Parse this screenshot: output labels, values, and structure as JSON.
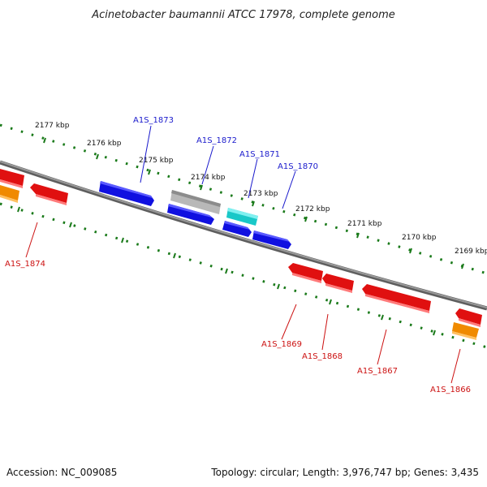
{
  "title": "Acinetobacter baumannii ATCC 17978, complete genome",
  "footer": {
    "accession": "Accession: NC_009085",
    "summary": "Topology: circular; Length: 3,976,747 bp; Genes: 3,435"
  },
  "colors": {
    "backbone": "#808080",
    "tick_dot": "#1a7a1a",
    "forward_label": "#1a1acc",
    "reverse_label": "#cc1111",
    "gene_blue": "#1010e0",
    "gene_gray": "#b8b8b8",
    "gene_cyan": "#19c8c8",
    "gene_red": "#e01010",
    "gene_orange": "#f08a00"
  },
  "ticks": [
    {
      "label": "2177 kbp"
    },
    {
      "label": "2176 kbp"
    },
    {
      "label": "2175 kbp"
    },
    {
      "label": "2174 kbp"
    },
    {
      "label": "2173 kbp"
    },
    {
      "label": "2172 kbp"
    },
    {
      "label": "2171 kbp"
    },
    {
      "label": "2170 kbp"
    },
    {
      "label": "2169 kbp"
    }
  ],
  "gene_labels": [
    {
      "text": "A1S_1873",
      "strand": "forward"
    },
    {
      "text": "A1S_1872",
      "strand": "forward"
    },
    {
      "text": "A1S_1871",
      "strand": "forward"
    },
    {
      "text": "A1S_1870",
      "strand": "forward"
    },
    {
      "text": "A1S_1874",
      "strand": "reverse"
    },
    {
      "text": "A1S_1869",
      "strand": "reverse"
    },
    {
      "text": "A1S_1868",
      "strand": "reverse"
    },
    {
      "text": "A1S_1867",
      "strand": "reverse"
    },
    {
      "text": "A1S_1866",
      "strand": "reverse"
    }
  ]
}
